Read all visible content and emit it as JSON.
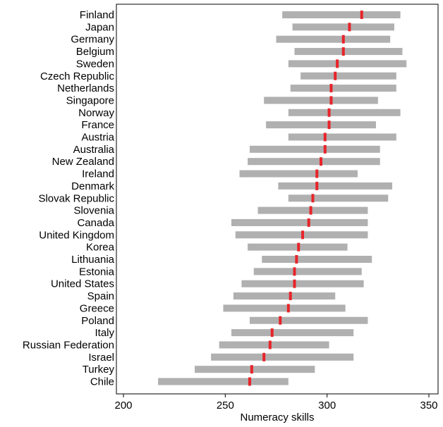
{
  "chart_data": {
    "type": "range-bar",
    "xlabel": "Numeracy skills",
    "xlim": [
      200,
      350
    ],
    "xticks": [
      200,
      250,
      300,
      350
    ],
    "grid": false,
    "colors": {
      "range": "#b0b0b0",
      "mean": "#e8242a",
      "axis": "#000000"
    },
    "categories": [
      "Finland",
      "Japan",
      "Germany",
      "Belgium",
      "Sweden",
      "Czech Republic",
      "Netherlands",
      "Singapore",
      "Norway",
      "France",
      "Austria",
      "Australia",
      "New Zealand",
      "Ireland",
      "Denmark",
      "Slovak Republic",
      "Slovenia",
      "Canada",
      "United Kingdom",
      "Korea",
      "Lithuania",
      "Estonia",
      "United States",
      "Spain",
      "Greece",
      "Poland",
      "Italy",
      "Russian Federation",
      "Israel",
      "Turkey",
      "Chile"
    ],
    "low": [
      278,
      283,
      275,
      284,
      281,
      287,
      282,
      269,
      281,
      270,
      281,
      262,
      261,
      257,
      276,
      281,
      266,
      253,
      255,
      261,
      268,
      264,
      258,
      254,
      249,
      262,
      253,
      247,
      243,
      235,
      217
    ],
    "high": [
      336,
      333,
      331,
      337,
      339,
      334,
      334,
      325,
      336,
      324,
      334,
      326,
      326,
      315,
      332,
      330,
      320,
      320,
      320,
      310,
      322,
      317,
      318,
      304,
      309,
      320,
      313,
      301,
      313,
      294,
      281
    ],
    "mean": [
      317,
      311,
      308,
      308,
      305,
      304,
      302,
      302,
      301,
      301,
      299,
      299,
      297,
      295,
      295,
      293,
      292,
      291,
      288,
      286,
      285,
      284,
      284,
      282,
      281,
      277,
      273,
      272,
      269,
      263,
      262
    ]
  }
}
